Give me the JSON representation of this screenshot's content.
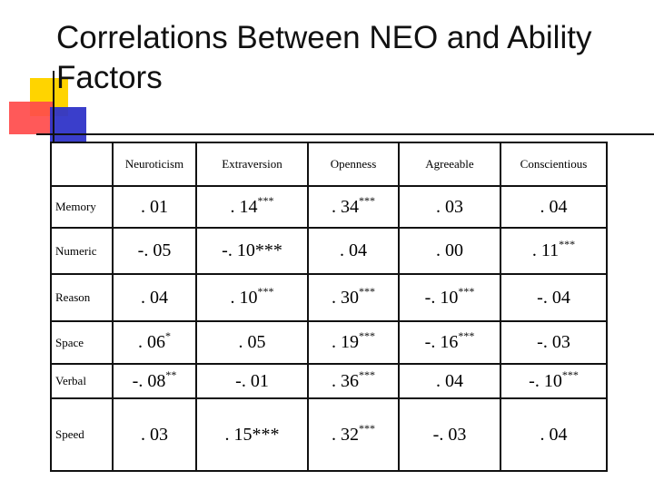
{
  "title": "Correlations Between NEO and Ability Factors",
  "columns": [
    "",
    "Neuroticism",
    "Extraversion",
    "Openness",
    "Agreeable",
    "Conscientious"
  ],
  "rows": [
    {
      "label": "Memory",
      "cells": [
        {
          "v": ". 01",
          "s": ""
        },
        {
          "v": ". 14",
          "s": "***"
        },
        {
          "v": ". 34",
          "s": "***"
        },
        {
          "v": ". 03",
          "s": ""
        },
        {
          "v": ". 04",
          "s": ""
        }
      ]
    },
    {
      "label": "Numeric",
      "cells": [
        {
          "v": "-. 05",
          "s": ""
        },
        {
          "v": "-. 10***",
          "s": ""
        },
        {
          "v": ". 04",
          "s": ""
        },
        {
          "v": ". 00",
          "s": ""
        },
        {
          "v": ". 11",
          "s": "***"
        }
      ]
    },
    {
      "label": "Reason",
      "cells": [
        {
          "v": ". 04",
          "s": ""
        },
        {
          "v": ". 10",
          "s": "***"
        },
        {
          "v": ". 30",
          "s": "***"
        },
        {
          "v": "-. 10",
          "s": "***"
        },
        {
          "v": "-. 04",
          "s": ""
        }
      ]
    },
    {
      "label": "Space",
      "cells": [
        {
          "v": ". 06",
          "s": "*"
        },
        {
          "v": ". 05",
          "s": ""
        },
        {
          "v": ". 19",
          "s": "***"
        },
        {
          "v": "-. 16",
          "s": "***"
        },
        {
          "v": "-. 03",
          "s": ""
        }
      ]
    },
    {
      "label": "Verbal",
      "cells": [
        {
          "v": "-. 08",
          "s": "**"
        },
        {
          "v": "-. 01",
          "s": ""
        },
        {
          "v": ". 36",
          "s": "***"
        },
        {
          "v": ". 04",
          "s": ""
        },
        {
          "v": "-. 10",
          "s": "***"
        }
      ]
    },
    {
      "label": "Speed",
      "cells": [
        {
          "v": ". 03",
          "s": ""
        },
        {
          "v": ". 15***",
          "s": ""
        },
        {
          "v": ". 32",
          "s": "***"
        },
        {
          "v": "-. 03",
          "s": ""
        },
        {
          "v": ". 04",
          "s": ""
        }
      ]
    }
  ],
  "decoration": {
    "yellow": "#ffd400",
    "red": "#ff4b4b",
    "blue": "#2f34c8"
  }
}
